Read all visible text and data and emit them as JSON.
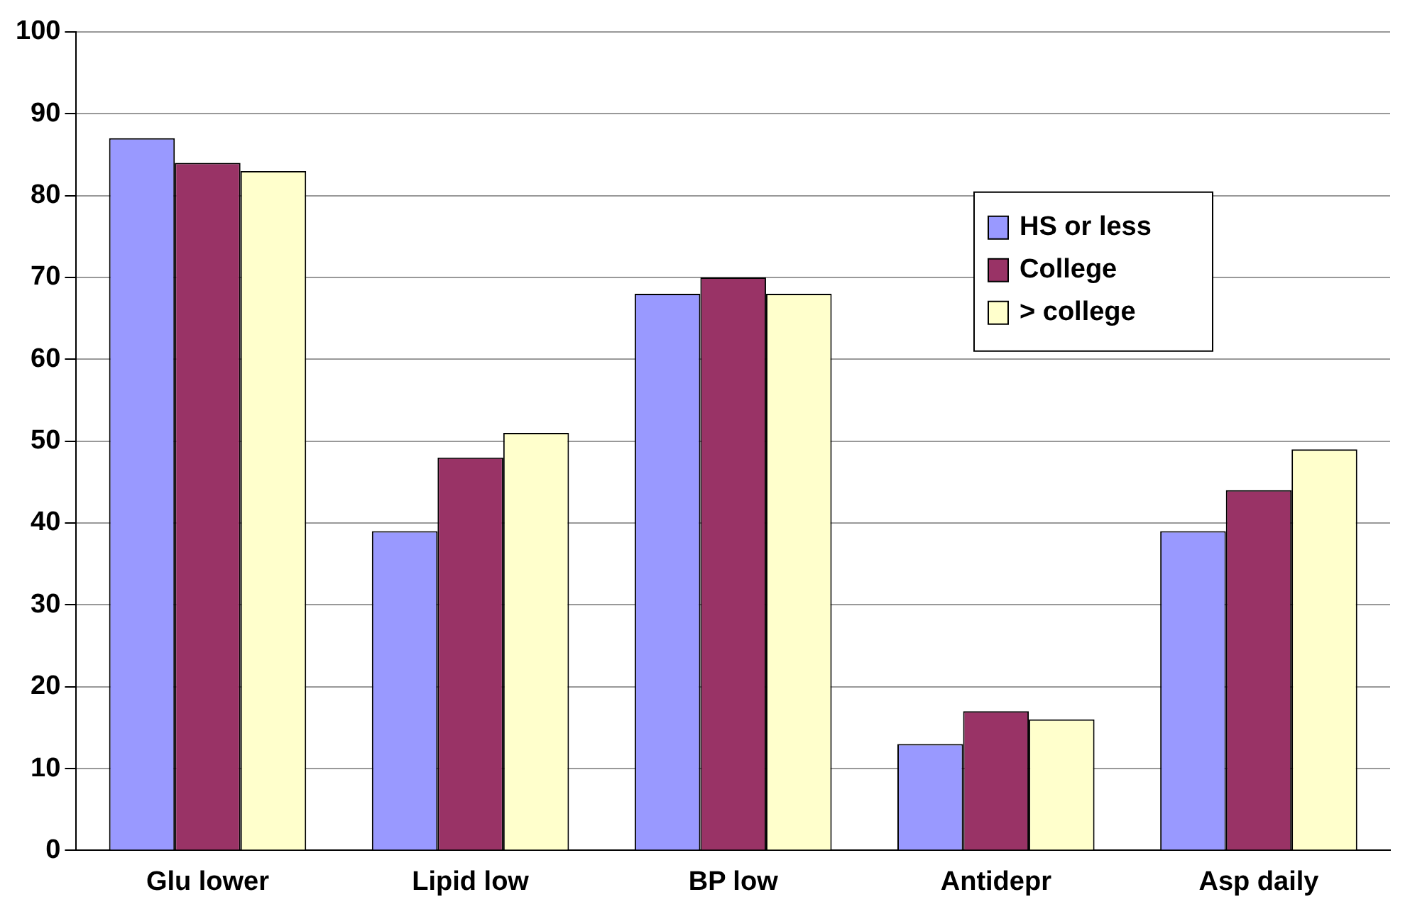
{
  "chart_data": {
    "type": "bar",
    "categories": [
      "Glu lower",
      "Lipid low",
      "BP low",
      "Antidepr",
      "Asp daily"
    ],
    "series": [
      {
        "name": "HS or less",
        "color": "#9999ff",
        "values": [
          87,
          39,
          68,
          13,
          39
        ]
      },
      {
        "name": "College",
        "color": "#993366",
        "values": [
          84,
          48,
          70,
          17,
          44
        ]
      },
      {
        "name": "> college",
        "color": "#ffffcc",
        "values": [
          83,
          51,
          68,
          16,
          49
        ]
      }
    ],
    "ylim": [
      0,
      100
    ],
    "yticks": [
      0,
      10,
      20,
      30,
      40,
      50,
      60,
      70,
      80,
      90,
      100
    ],
    "grid": "y",
    "legend": "top right"
  }
}
